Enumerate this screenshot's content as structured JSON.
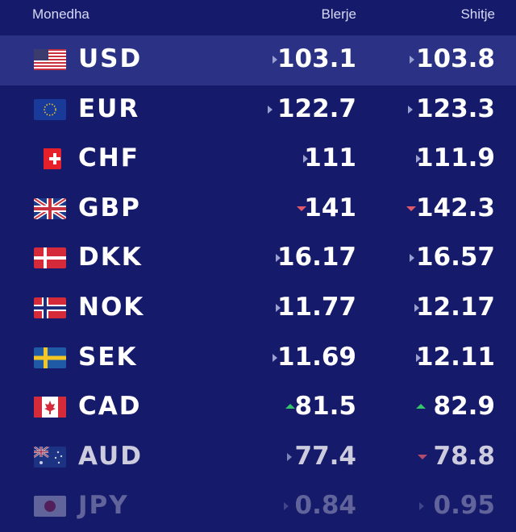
{
  "header": {
    "currency": "Monedha",
    "buy": "Blerje",
    "sell": "Shitje"
  },
  "rows": [
    {
      "code": "USD",
      "flag": "usa-flag-icon",
      "buy": "103.1",
      "buy_trend": "neutral",
      "sell": "103.8",
      "sell_trend": "neutral"
    },
    {
      "code": "EUR",
      "flag": "eu-flag-icon",
      "buy": "122.7",
      "buy_trend": "neutral",
      "sell": "123.3",
      "sell_trend": "neutral"
    },
    {
      "code": "CHF",
      "flag": "swiss-flag-icon",
      "buy": "111",
      "buy_trend": "neutral",
      "sell": "111.9",
      "sell_trend": "neutral"
    },
    {
      "code": "GBP",
      "flag": "uk-flag-icon",
      "buy": "141",
      "buy_trend": "down",
      "sell": "142.3",
      "sell_trend": "down"
    },
    {
      "code": "DKK",
      "flag": "denmark-flag-icon",
      "buy": "16.17",
      "buy_trend": "neutral",
      "sell": "16.57",
      "sell_trend": "neutral"
    },
    {
      "code": "NOK",
      "flag": "norway-flag-icon",
      "buy": "11.77",
      "buy_trend": "neutral",
      "sell": "12.17",
      "sell_trend": "neutral"
    },
    {
      "code": "SEK",
      "flag": "sweden-flag-icon",
      "buy": "11.69",
      "buy_trend": "neutral",
      "sell": "12.11",
      "sell_trend": "neutral"
    },
    {
      "code": "CAD",
      "flag": "canada-flag-icon",
      "buy": "81.5",
      "buy_trend": "up",
      "sell": "82.9",
      "sell_trend": "up"
    },
    {
      "code": "AUD",
      "flag": "australia-flag-icon",
      "buy": "77.4",
      "buy_trend": "neutral",
      "sell": "78.8",
      "sell_trend": "down"
    },
    {
      "code": "JPY",
      "flag": "japan-flag-icon",
      "buy": "0.84",
      "buy_trend": "neutral",
      "sell": "0.95",
      "sell_trend": "neutral"
    }
  ],
  "colors": {
    "background": "#161a6b",
    "highlight_row": "#2b3185",
    "up": "#35c46a",
    "down": "#e05a6a",
    "neutral": "#9aa0d0"
  }
}
